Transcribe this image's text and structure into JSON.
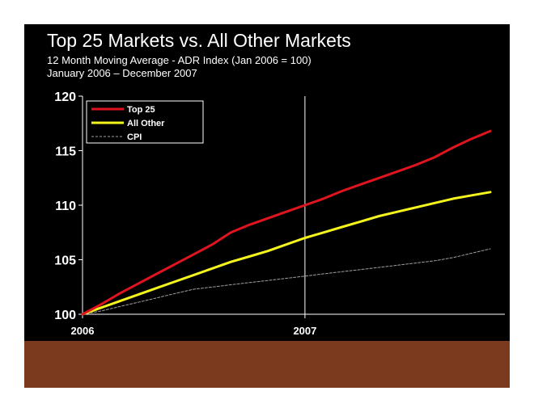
{
  "title": "Top 25 Markets vs. All Other Markets",
  "subtitle_line1": "12 Month Moving Average - ADR Index (Jan 2006 = 100)",
  "subtitle_line2": "January 2006 – December 2007",
  "colors": {
    "background": "#000000",
    "band": "#7b3a1e",
    "top25": "#e0141e",
    "allother": "#f5f51e",
    "cpi": "#a0a0a0",
    "text": "#ffffff"
  },
  "chart_data": {
    "type": "line",
    "title": "Top 25 Markets vs. All Other Markets",
    "ylim": [
      100,
      120
    ],
    "yticks": [
      100,
      105,
      110,
      115,
      120
    ],
    "x_tick_labels": [
      {
        "label": "2006",
        "month_index": 0
      },
      {
        "label": "2007",
        "month_index": 12
      }
    ],
    "legend_position": "top-left",
    "grid": false,
    "series": [
      {
        "name": "Top 25",
        "color": "#e0141e",
        "style": "solid",
        "values": [
          100,
          100.9,
          101.9,
          102.8,
          103.7,
          104.6,
          105.5,
          106.4,
          107.5,
          108.2,
          108.8,
          109.4,
          110.0,
          110.6,
          111.3,
          111.9,
          112.5,
          113.1,
          113.7,
          114.4,
          115.3,
          116.1,
          116.8
        ]
      },
      {
        "name": "All Other",
        "color": "#f5f51e",
        "style": "solid",
        "values": [
          100,
          100.6,
          101.2,
          101.8,
          102.4,
          103.0,
          103.6,
          104.2,
          104.8,
          105.3,
          105.8,
          106.4,
          107.0,
          107.5,
          108.0,
          108.5,
          109.0,
          109.4,
          109.8,
          110.2,
          110.6,
          110.9,
          111.2
        ]
      },
      {
        "name": "CPI",
        "color": "#a0a0a0",
        "style": "dashed",
        "values": [
          100,
          100.3,
          100.7,
          101.1,
          101.5,
          101.9,
          102.3,
          102.5,
          102.7,
          102.9,
          103.1,
          103.3,
          103.5,
          103.7,
          103.9,
          104.1,
          104.3,
          104.5,
          104.7,
          104.9,
          105.2,
          105.6,
          106.0
        ]
      }
    ]
  }
}
